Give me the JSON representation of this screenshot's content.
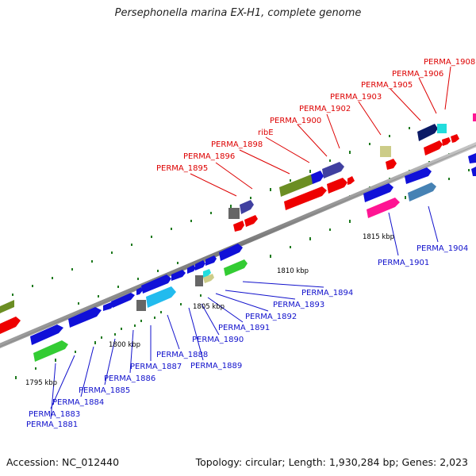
{
  "title": "Persephonella marina EX-H1, complete genome",
  "footer": {
    "accession": "Accession: NC_012440",
    "topology": "Topology: circular; Length: 1,930,284 bp; Genes: 2,023"
  },
  "colors": {
    "axis": "#8c8c8c",
    "tick": "#1f7a1f",
    "label_top": "#dd0000",
    "label_bottom": "#1111cc",
    "coord_text": "#000000"
  },
  "coordinate_labels": [
    "1795 kbp",
    "1800 kbp",
    "1805 kbp",
    "1810 kbp",
    "1815 kbp"
  ],
  "top_labels": [
    "PERMA_1895",
    "PERMA_1896",
    "PERMA_1898",
    "ribE",
    "PERMA_1900",
    "PERMA_1902",
    "PERMA_1903",
    "PERMA_1905",
    "PERMA_1906",
    "PERMA_1908"
  ],
  "bottom_labels": [
    "PERMA_1881",
    "PERMA_1883",
    "PERMA_1884",
    "PERMA_1885",
    "PERMA_1886",
    "PERMA_1887",
    "PERMA_1888",
    "PERMA_1889",
    "PERMA_1890",
    "PERMA_1891",
    "PERMA_1892",
    "PERMA_1893",
    "PERMA_1894",
    "PERMA_1901",
    "PERMA_1904"
  ]
}
